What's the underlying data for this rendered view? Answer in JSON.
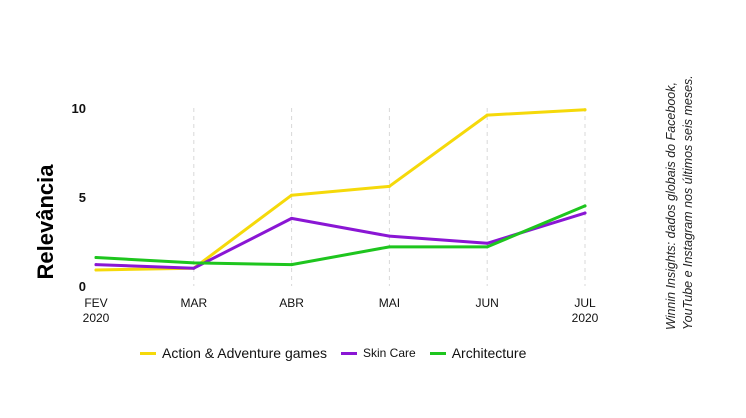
{
  "chart_data": {
    "type": "line",
    "categories": [
      [
        "FEV",
        "2020"
      ],
      [
        "MAR",
        ""
      ],
      [
        "ABR",
        ""
      ],
      [
        "MAI",
        ""
      ],
      [
        "JUN",
        ""
      ],
      [
        "JUL",
        "2020"
      ]
    ],
    "ylabel": "Relevância",
    "ylim": [
      0,
      10
    ],
    "yticks": [
      0,
      5,
      10
    ],
    "grid": "vertical dashed at categories",
    "legend_position": "bottom",
    "series": [
      {
        "name": "Action & Adventure games",
        "color": "#f5d90a",
        "values": [
          0.9,
          1.0,
          5.1,
          5.6,
          9.6,
          9.9
        ]
      },
      {
        "name": "Skin Care",
        "color": "#8a16d4",
        "values": [
          1.2,
          1.0,
          3.8,
          2.8,
          2.4,
          4.1
        ]
      },
      {
        "name": "Architecture",
        "color": "#1ec51e",
        "values": [
          1.6,
          1.3,
          1.2,
          2.2,
          2.2,
          4.5
        ]
      }
    ]
  },
  "source_note": "Winnin Insights: dados globais do Facebook, YouTube e Instagram nos últimos seis meses."
}
